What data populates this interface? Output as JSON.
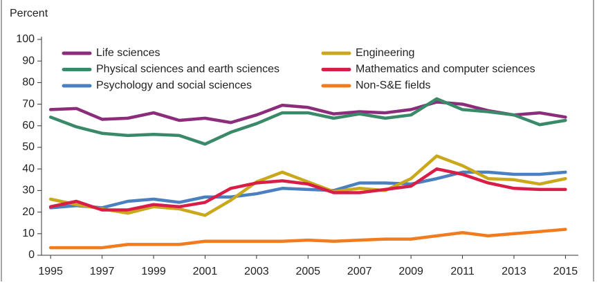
{
  "chart_data": {
    "type": "line",
    "y_axis_label": "Percent",
    "x": [
      1995,
      1996,
      1997,
      1998,
      1999,
      2000,
      2001,
      2002,
      2003,
      2004,
      2005,
      2006,
      2007,
      2008,
      2009,
      2010,
      2011,
      2012,
      2013,
      2014,
      2015
    ],
    "xlim": [
      1994.7,
      2015.5
    ],
    "xticks": [
      1995,
      1997,
      1999,
      2001,
      2003,
      2005,
      2007,
      2009,
      2011,
      2013,
      2015
    ],
    "ylim": [
      0,
      100
    ],
    "yticks": [
      0,
      10,
      20,
      30,
      40,
      50,
      60,
      70,
      80,
      90,
      100
    ],
    "grid": false,
    "series": [
      {
        "name": "Life sciences",
        "color": "#8b2d7a",
        "values": [
          67.5,
          68,
          63,
          63.5,
          66,
          62.5,
          63.5,
          61.5,
          65,
          69.5,
          68.5,
          65.5,
          66.5,
          66,
          67.5,
          71,
          70,
          67,
          65,
          66,
          64
        ]
      },
      {
        "name": "Physical sciences and earth sciences",
        "color": "#3a8a6a",
        "values": [
          64,
          59.5,
          56.5,
          55.5,
          56,
          55.5,
          51.5,
          57,
          61,
          66,
          66,
          63.5,
          65.5,
          63.5,
          65,
          72.5,
          67.5,
          66.5,
          65,
          60.5,
          62.5
        ]
      },
      {
        "name": "Psychology and social sciences",
        "color": "#4a7fc0",
        "values": [
          22,
          23,
          22,
          25,
          26,
          24.5,
          27,
          27,
          28.5,
          31,
          30.5,
          30,
          33.5,
          33.5,
          33,
          35.5,
          38.5,
          38.5,
          37.5,
          37.5,
          38.5
        ]
      },
      {
        "name": "Engineering",
        "color": "#c9a81b",
        "values": [
          26,
          23.5,
          21.5,
          19.5,
          22.5,
          21.5,
          18.5,
          25.5,
          34,
          38.5,
          34,
          29.5,
          31,
          30,
          35.5,
          46,
          41.5,
          35.5,
          35,
          33,
          35.5
        ]
      },
      {
        "name": "Mathematics and computer sciences",
        "color": "#d81e47",
        "values": [
          22.5,
          25,
          21,
          21,
          23.5,
          22.5,
          24.5,
          31,
          33.5,
          34.5,
          33,
          29,
          29,
          30.5,
          32,
          40,
          37.5,
          33.5,
          31,
          30.5,
          30.5
        ]
      },
      {
        "name": "Non-S&E fields",
        "color": "#f07c1f",
        "values": [
          3.5,
          3.5,
          3.5,
          5,
          5,
          5,
          6.5,
          6.5,
          6.5,
          6.5,
          7,
          6.5,
          7,
          7.5,
          7.5,
          9,
          10.5,
          9,
          10,
          11,
          12
        ]
      }
    ]
  }
}
